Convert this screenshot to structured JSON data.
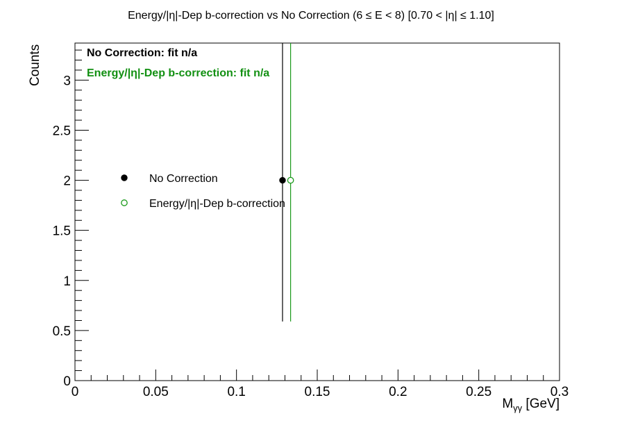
{
  "chart_data": {
    "type": "scatter",
    "title": "Energy/|η|-Dep b-correction vs No Correction   (6 ≤ E < 8)   [0.70 < |η| ≤ 1.10]",
    "xlabel": "M",
    "xlabel_sub": "γγ",
    "xlabel_unit": " [GeV]",
    "ylabel": "Counts",
    "xlim": [
      0,
      0.3
    ],
    "ylim": [
      0,
      3.37
    ],
    "x_ticks": [
      0,
      0.05,
      0.1,
      0.15,
      0.2,
      0.25,
      0.3
    ],
    "x_tick_labels": [
      "0",
      "0.05",
      "0.1",
      "0.15",
      "0.2",
      "0.25",
      "0.3"
    ],
    "y_ticks": [
      0,
      0.5,
      1,
      1.5,
      2,
      2.5,
      3
    ],
    "y_tick_labels": [
      "0",
      "0.5",
      "1",
      "1.5",
      "2",
      "2.5",
      "3"
    ],
    "grid": false,
    "legend_position": "middle-left",
    "series": [
      {
        "name": "No Correction",
        "color": "#000000",
        "marker": "filled-circle",
        "points": [
          {
            "x": 0.1285,
            "y": 2,
            "err_low": 1.41,
            "err_high": 2.63
          }
        ]
      },
      {
        "name": "Energy/|η|-Dep b-correction",
        "color": "#1a9a1a",
        "marker": "open-circle",
        "points": [
          {
            "x": 0.1335,
            "y": 2,
            "err_low": 1.41,
            "err_high": 2.63
          }
        ]
      }
    ],
    "annotations": [
      {
        "text": "No Correction:  fit n/a",
        "color": "#000000"
      },
      {
        "text": "Energy/|η|-Dep b-correction:  fit n/a",
        "color": "#129012"
      }
    ]
  }
}
